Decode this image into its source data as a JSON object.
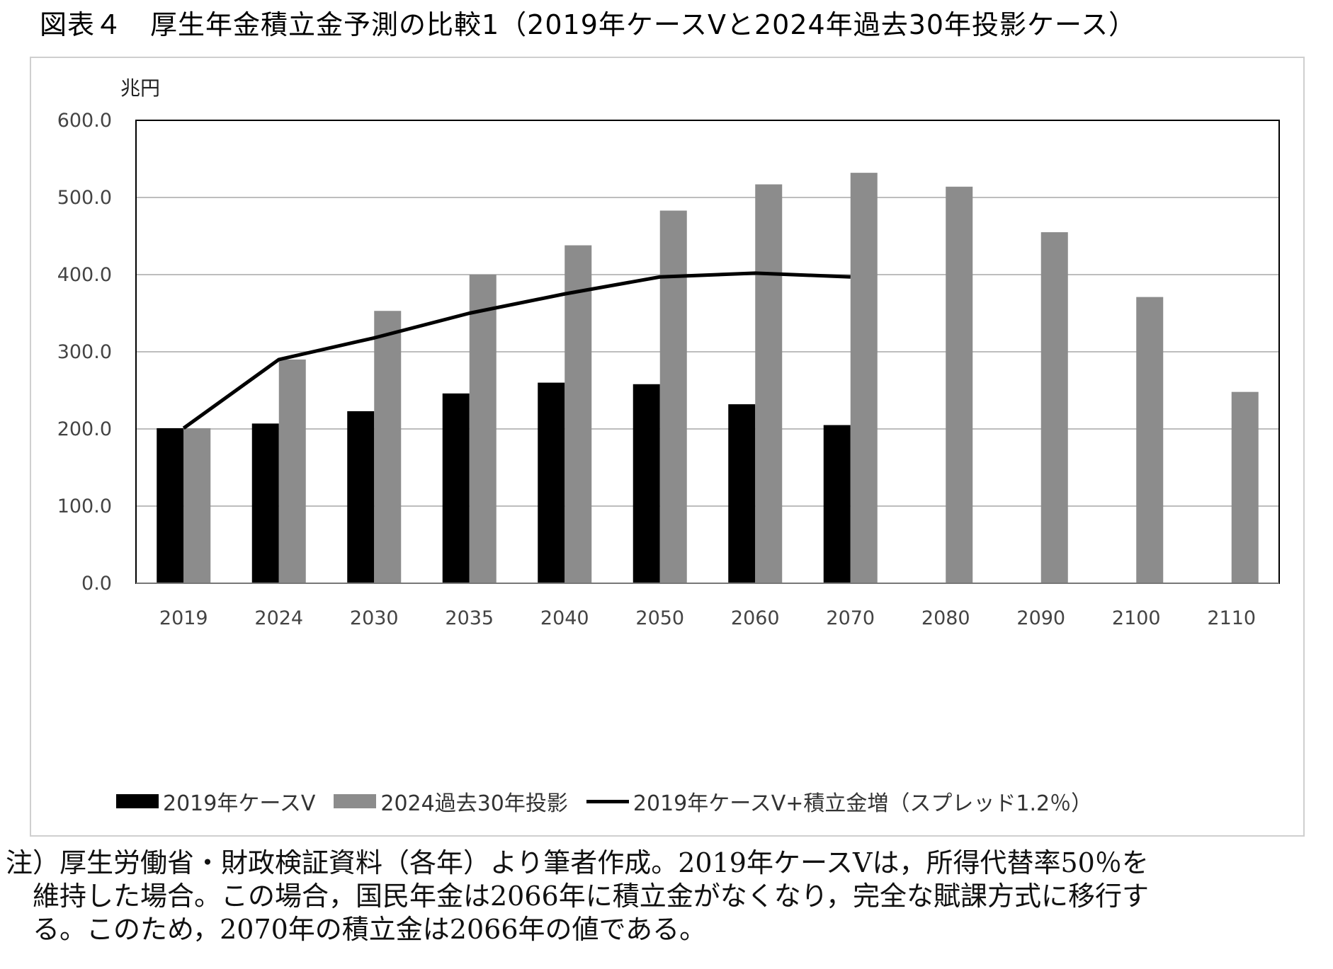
{
  "title": "図表４　厚生年金積立金予測の比較1（2019年ケースⅤと2024年過去30年投影ケース）",
  "chart_data": {
    "type": "bar",
    "categories": [
      "2019",
      "2024",
      "2030",
      "2035",
      "2040",
      "2050",
      "2060",
      "2070",
      "2080",
      "2090",
      "2100",
      "2110"
    ],
    "series": [
      {
        "name": "2019年ケースⅤ",
        "kind": "bar",
        "color": "#000000",
        "values": [
          201,
          207,
          223,
          246,
          260,
          258,
          232,
          205,
          null,
          null,
          null,
          null
        ]
      },
      {
        "name": "2024過去30年投影",
        "kind": "bar",
        "color": "#8c8c8c",
        "values": [
          201,
          290,
          353,
          400,
          438,
          483,
          517,
          532,
          514,
          455,
          371,
          248
        ]
      },
      {
        "name": "2019年ケースⅤ+積立金増（スプレッド1.2％）",
        "kind": "line",
        "color": "#000000",
        "values": [
          201,
          290,
          318,
          350,
          375,
          397,
          402,
          397,
          null,
          null,
          null,
          null
        ]
      }
    ],
    "ylabel": "兆円",
    "ylim": [
      0,
      600
    ],
    "yticks": [
      "0.0",
      "100.0",
      "200.0",
      "300.0",
      "400.0",
      "500.0",
      "600.0"
    ],
    "grid": true,
    "legend_position": "bottom"
  },
  "note": {
    "lines": [
      "注）厚生労働省・財政検証資料（各年）より筆者作成。2019年ケースⅤは，所得代替率50％を",
      "維持した場合。この場合，国民年金は2066年に積立金がなくなり，完全な賦課方式に移行す",
      "る。このため，2070年の積立金は2066年の値である。"
    ]
  }
}
